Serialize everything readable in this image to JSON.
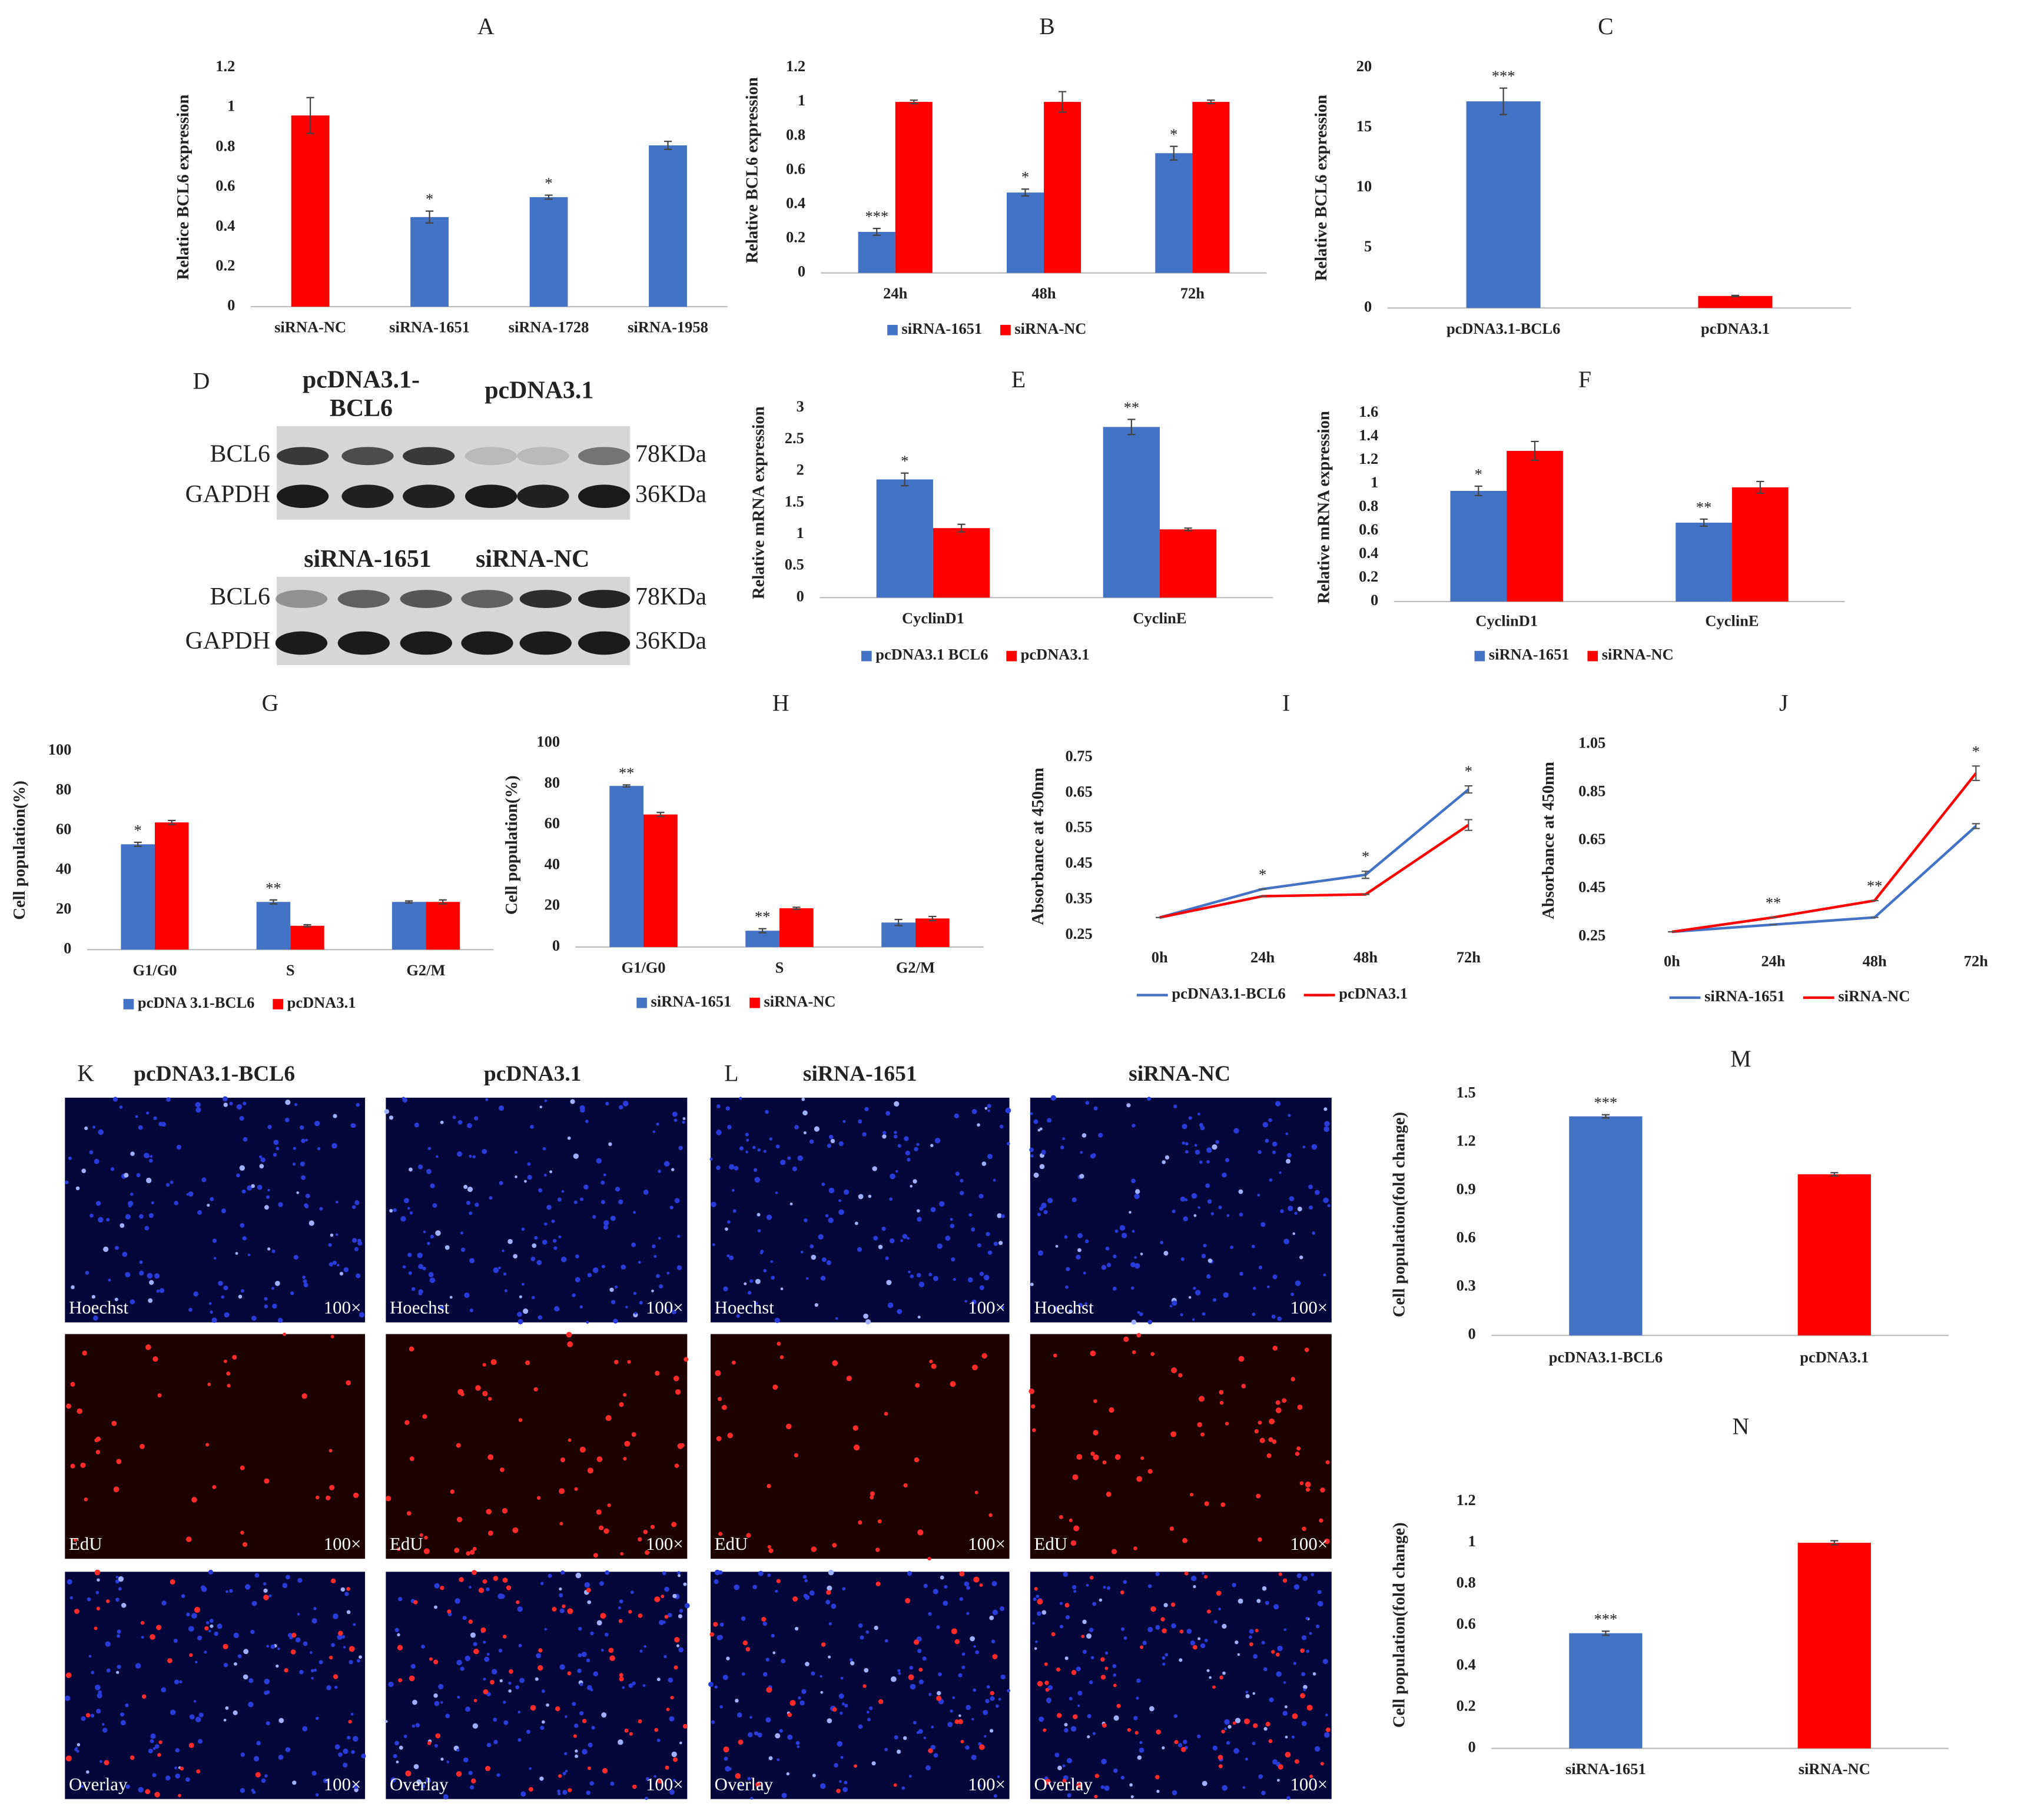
{
  "chart_data": [
    {
      "type": "bar",
      "title": "A",
      "ylabel": "Relatice BCL6 expression",
      "categories": [
        "siRNA-NC",
        "siRNA-1651",
        "siRNA-1728",
        "siRNA-1958"
      ],
      "values": [
        0.96,
        0.45,
        0.55,
        0.81
      ],
      "errors": [
        0.09,
        0.03,
        0.01,
        0.02
      ],
      "significance": [
        null,
        "*",
        "*",
        null
      ],
      "colors": [
        "#ff0000",
        "#4472c4",
        "#4472c4",
        "#4472c4"
      ],
      "ylim": [
        0,
        1.2
      ],
      "yticks": [
        0,
        0.2,
        0.4,
        0.6,
        0.8,
        1,
        1.2
      ]
    },
    {
      "type": "bar",
      "title": "B",
      "ylabel": "Relative BCL6 expression",
      "categories": [
        "24h",
        "48h",
        "72h"
      ],
      "series": [
        {
          "name": "siRNA-1651",
          "color": "#4472c4",
          "values": [
            0.24,
            0.47,
            0.7
          ],
          "errors": [
            0.02,
            0.02,
            0.04
          ],
          "significance": [
            "***",
            "*",
            "*"
          ]
        },
        {
          "name": "siRNA-NC",
          "color": "#ff0000",
          "values": [
            1,
            1,
            1
          ],
          "errors": [
            0.01,
            0.06,
            0.01
          ],
          "significance": [
            null,
            null,
            null
          ]
        }
      ],
      "ylim": [
        0,
        1.2
      ],
      "yticks": [
        0,
        0.2,
        0.4,
        0.6,
        0.8,
        1,
        1.2
      ]
    },
    {
      "type": "bar",
      "title": "C",
      "ylabel": "Relative BCL6 expression",
      "categories": [
        "pcDNA3.1-BCL6",
        "pcDNA3.1"
      ],
      "values": [
        17.2,
        1
      ],
      "errors": [
        1.1,
        0.05
      ],
      "significance": [
        "***",
        null
      ],
      "colors": [
        "#4472c4",
        "#ff0000"
      ],
      "ylim": [
        0,
        20
      ],
      "yticks": [
        0,
        5,
        10,
        15,
        20
      ]
    },
    {
      "type": "bar",
      "title": "E",
      "ylabel": "Relative mRNA expression",
      "categories": [
        "CyclinD1",
        "CyclinE"
      ],
      "series": [
        {
          "name": "pcDNA3.1 BCL6",
          "color": "#4472c4",
          "values": [
            1.87,
            2.7
          ],
          "errors": [
            0.1,
            0.12
          ],
          "significance": [
            "*",
            "**"
          ]
        },
        {
          "name": "pcDNA3.1",
          "color": "#ff0000",
          "values": [
            1.1,
            1.08
          ],
          "errors": [
            0.06,
            0.02
          ],
          "significance": [
            null,
            null
          ]
        }
      ],
      "ylim": [
        0,
        3
      ],
      "yticks": [
        0,
        0.5,
        1,
        1.5,
        2,
        2.5,
        3
      ]
    },
    {
      "type": "bar",
      "title": "F",
      "ylabel": "Relative mRNA expression",
      "categories": [
        "CyclinD1",
        "CyclinE"
      ],
      "series": [
        {
          "name": "siRNA-1651",
          "color": "#4472c4",
          "values": [
            0.94,
            0.67
          ],
          "errors": [
            0.04,
            0.03
          ],
          "significance": [
            "*",
            "**"
          ]
        },
        {
          "name": "siRNA-NC",
          "color": "#ff0000",
          "values": [
            1.28,
            0.97
          ],
          "errors": [
            0.08,
            0.05
          ],
          "significance": [
            null,
            null
          ]
        }
      ],
      "ylim": [
        0,
        1.6
      ],
      "yticks": [
        0,
        0.2,
        0.4,
        0.6,
        0.8,
        1,
        1.2,
        1.4,
        1.6
      ]
    },
    {
      "type": "bar",
      "title": "G",
      "ylabel": "Cell population(%)",
      "categories": [
        "G1/G0",
        "S",
        "G2/M"
      ],
      "series": [
        {
          "name": "pcDNA 3.1-BCL6",
          "color": "#4472c4",
          "values": [
            53,
            24,
            24
          ],
          "errors": [
            1,
            1,
            0.5
          ],
          "significance": [
            "*",
            "**",
            null
          ]
        },
        {
          "name": "pcDNA3.1",
          "color": "#ff0000",
          "values": [
            64,
            12,
            24
          ],
          "errors": [
            1,
            0.5,
            1
          ],
          "significance": [
            null,
            null,
            null
          ]
        }
      ],
      "ylim": [
        0,
        100
      ],
      "yticks": [
        0,
        20,
        40,
        60,
        80,
        100
      ]
    },
    {
      "type": "bar",
      "title": "H",
      "ylabel": "Cell population(%)",
      "categories": [
        "G1/G0",
        "S",
        "G2/M"
      ],
      "series": [
        {
          "name": "siRNA-1651",
          "color": "#4472c4",
          "values": [
            79,
            8,
            12
          ],
          "errors": [
            0.5,
            1,
            1.5
          ],
          "significance": [
            "**",
            "**",
            null
          ]
        },
        {
          "name": "siRNA-NC",
          "color": "#ff0000",
          "values": [
            65,
            19,
            14
          ],
          "errors": [
            1,
            0.5,
            1
          ],
          "significance": [
            null,
            null,
            null
          ]
        }
      ],
      "ylim": [
        0,
        100
      ],
      "yticks": [
        0,
        20,
        40,
        60,
        80,
        100
      ]
    },
    {
      "type": "line",
      "title": "I",
      "ylabel": "Absorbance at 450nm",
      "categories": [
        "0h",
        "24h",
        "48h",
        "72h"
      ],
      "series": [
        {
          "name": "pcDNA3.1-BCL6",
          "color": "#4472c4",
          "values": [
            0.3,
            0.38,
            0.42,
            0.66
          ],
          "errors": [
            0,
            0,
            0.01,
            0.01
          ],
          "significance": [
            null,
            "*",
            "*",
            "*"
          ]
        },
        {
          "name": "pcDNA3.1",
          "color": "#ff0000",
          "values": [
            0.3,
            0.36,
            0.365,
            0.56
          ],
          "errors": [
            0,
            0,
            0,
            0.015
          ],
          "significance": [
            null,
            null,
            null,
            null
          ]
        }
      ],
      "ylim": [
        0.25,
        0.75
      ],
      "yticks": [
        0.25,
        0.35,
        0.45,
        0.55,
        0.65,
        0.75
      ]
    },
    {
      "type": "line",
      "title": "J",
      "ylabel": "Absorbance at 450nm",
      "categories": [
        "0h",
        "24h",
        "48h",
        "72h"
      ],
      "series": [
        {
          "name": "siRNA-1651",
          "color": "#4472c4",
          "values": [
            0.27,
            0.3,
            0.33,
            0.71
          ],
          "errors": [
            0,
            0,
            0,
            0.01
          ],
          "significance": [
            null,
            null,
            null,
            null
          ]
        },
        {
          "name": "siRNA-NC",
          "color": "#ff0000",
          "values": [
            0.27,
            0.33,
            0.4,
            0.93
          ],
          "errors": [
            0,
            0,
            0,
            0.03
          ],
          "significance": [
            null,
            "**",
            "**",
            "*"
          ]
        }
      ],
      "ylim": [
        0.25,
        1.05
      ],
      "yticks": [
        0.25,
        0.45,
        0.65,
        0.85,
        1.05
      ]
    },
    {
      "type": "bar",
      "title": "M",
      "ylabel": "Cell population(fold change)",
      "categories": [
        "pcDNA3.1-BCL6",
        "pcDNA3.1"
      ],
      "values": [
        1.36,
        1
      ],
      "errors": [
        0.01,
        0.01
      ],
      "significance": [
        "***",
        null
      ],
      "colors": [
        "#4472c4",
        "#ff0000"
      ],
      "ylim": [
        0,
        1.5
      ],
      "yticks": [
        0,
        0.3,
        0.6,
        0.9,
        1.2,
        1.5
      ]
    },
    {
      "type": "bar",
      "title": "N",
      "ylabel": "Cell population(fold change)",
      "categories": [
        "siRNA-1651",
        "siRNA-NC"
      ],
      "values": [
        0.56,
        1
      ],
      "errors": [
        0.01,
        0.01
      ],
      "significance": [
        "***",
        null
      ],
      "colors": [
        "#4472c4",
        "#ff0000"
      ],
      "ylim": [
        0,
        1.2
      ],
      "yticks": [
        0,
        0.2,
        0.4,
        0.6,
        0.8,
        1,
        1.2
      ]
    }
  ],
  "western_blot": {
    "label": "D",
    "blots": [
      {
        "groups": [
          [
            "pcDNA3.1-",
            "BCL6"
          ],
          [
            "pcDNA3.1"
          ]
        ],
        "rows": [
          {
            "protein": "BCL6",
            "size": "78KDa"
          },
          {
            "protein": "GAPDH",
            "size": "36KDa"
          }
        ]
      },
      {
        "groups": [
          [
            "siRNA-1651"
          ],
          [
            "siRNA-NC"
          ]
        ],
        "rows": [
          {
            "protein": "BCL6",
            "size": "78KDa"
          },
          {
            "protein": "GAPDH",
            "size": "36KDa"
          }
        ]
      }
    ]
  },
  "micrographs": {
    "panels": [
      {
        "label": "K",
        "conditions": [
          "pcDNA3.1-BCL6",
          "pcDNA3.1"
        ]
      },
      {
        "label": "L",
        "conditions": [
          "siRNA-1651",
          "siRNA-NC"
        ]
      }
    ],
    "stains": [
      "Hoechst",
      "EdU",
      "Overlay"
    ],
    "magnification": "100×"
  }
}
